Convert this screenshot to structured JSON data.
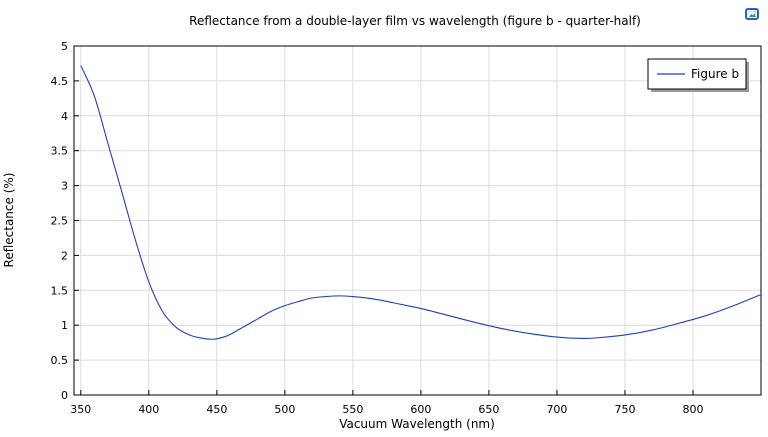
{
  "colors": {
    "series_line": "#1f3fbf",
    "axis": "#000000",
    "grid": "#dcdcdc",
    "background": "#ffffff"
  },
  "toolbar": {
    "corner_icon": "export-image-icon"
  },
  "chart_data": {
    "type": "line",
    "title": "Reflectance from a double-layer film vs wavelength (figure b - quarter-half)",
    "xlabel": "Vacuum Wavelength (nm)",
    "ylabel": "Reflectance (%)",
    "xlim": [
      345,
      850
    ],
    "ylim": [
      0,
      5
    ],
    "grid": true,
    "legend_position": "top-right",
    "xticks": [
      350,
      400,
      450,
      500,
      550,
      600,
      650,
      700,
      750,
      800
    ],
    "xtick_labels": [
      "350",
      "400",
      "450",
      "500",
      "550",
      "600",
      "650",
      "700",
      "750",
      "800"
    ],
    "yticks": [
      0,
      0.5,
      1,
      1.5,
      2,
      2.5,
      3,
      3.5,
      4,
      4.5,
      5
    ],
    "ytick_labels": [
      "0",
      "0.5",
      "1",
      "1.5",
      "2",
      "2.5",
      "3",
      "3.5",
      "4",
      "4.5",
      "5"
    ],
    "series": [
      {
        "name": "Figure b",
        "x": [
          350,
          360,
          370,
          380,
          390,
          400,
          410,
          420,
          430,
          440,
          448,
          455,
          460,
          470,
          480,
          490,
          500,
          510,
          520,
          530,
          540,
          550,
          560,
          570,
          580,
          590,
          600,
          620,
          640,
          660,
          680,
          700,
          718,
          730,
          750,
          770,
          790,
          810,
          830,
          850
        ],
        "y": [
          4.72,
          4.28,
          3.6,
          2.92,
          2.23,
          1.62,
          1.2,
          0.97,
          0.86,
          0.81,
          0.8,
          0.83,
          0.87,
          0.98,
          1.09,
          1.2,
          1.28,
          1.34,
          1.39,
          1.41,
          1.42,
          1.41,
          1.39,
          1.36,
          1.32,
          1.28,
          1.24,
          1.14,
          1.04,
          0.95,
          0.88,
          0.83,
          0.81,
          0.82,
          0.86,
          0.93,
          1.03,
          1.14,
          1.28,
          1.44
        ]
      }
    ]
  }
}
